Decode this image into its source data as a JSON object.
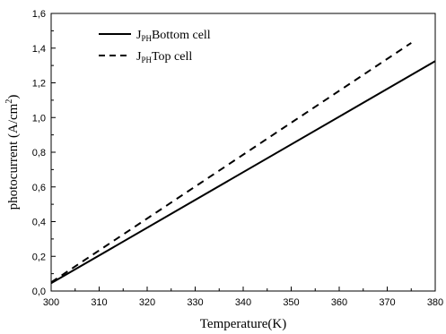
{
  "chart_data": {
    "type": "line",
    "xlabel": "Temperature(K)",
    "ylabel": "photocurrent (A/cm",
    "ylabel_sup": "2",
    "ylabel_close": ")",
    "xlim": [
      300,
      380
    ],
    "ylim": [
      0.0,
      1.6
    ],
    "x_ticks": [
      300,
      310,
      320,
      330,
      340,
      350,
      360,
      370,
      380
    ],
    "x_tick_labels": [
      "300",
      "310",
      "320",
      "330",
      "340",
      "350",
      "360",
      "370",
      "380"
    ],
    "y_ticks": [
      0.0,
      0.2,
      0.4,
      0.6,
      0.8,
      1.0,
      1.2,
      1.4,
      1.6
    ],
    "y_tick_labels": [
      "0,0",
      "0,2",
      "0,4",
      "0,6",
      "0,8",
      "1,0",
      "1,2",
      "1,4",
      "1,6"
    ],
    "grid": false,
    "legend_position": "top-left",
    "series": [
      {
        "label_main": "J",
        "label_sub": "PH",
        "label_rest": "Bottom cell",
        "style": "solid",
        "color": "#000000",
        "x": [
          300,
          380
        ],
        "y": [
          0.045,
          1.325
        ]
      },
      {
        "label_main": "J",
        "label_sub": "PH",
        "label_rest": "Top cell",
        "style": "dashed",
        "color": "#000000",
        "x": [
          300,
          375
        ],
        "y": [
          0.05,
          1.43
        ]
      }
    ]
  }
}
